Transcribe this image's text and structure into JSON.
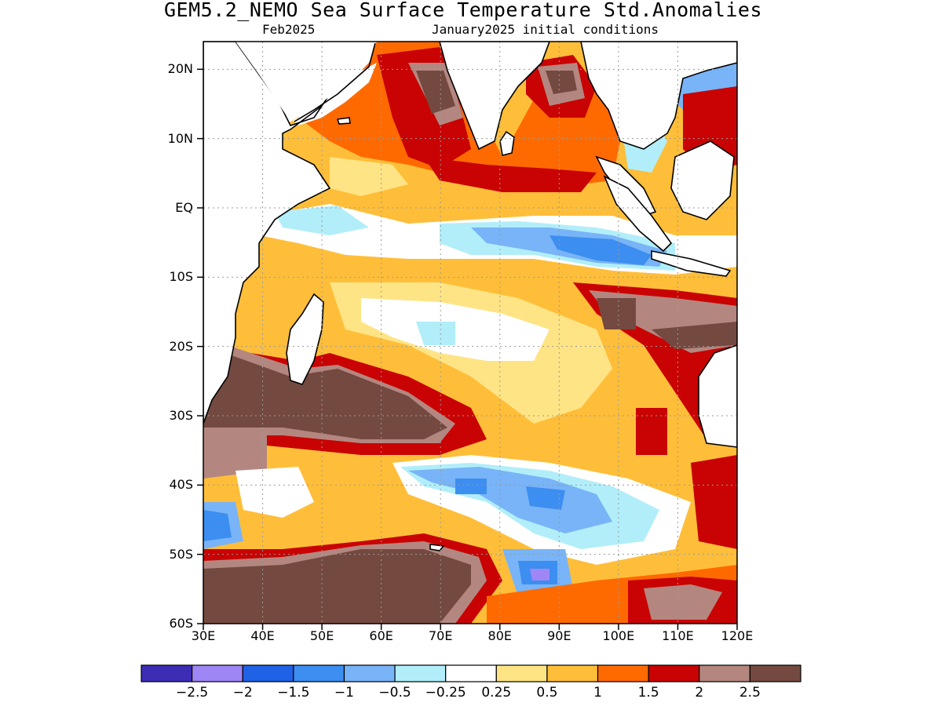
{
  "title": "GEM5.2_NEMO Sea Surface Temperature Std.Anomalies",
  "subtitle_left": "Feb2025",
  "subtitle_right": "January2025 initial conditions",
  "axes": {
    "lon_range": [
      30,
      120
    ],
    "lat_range": [
      -60,
      24
    ],
    "lat_ticks": [
      {
        "value": 20,
        "label": "20N"
      },
      {
        "value": 10,
        "label": "10N"
      },
      {
        "value": 0,
        "label": "EQ"
      },
      {
        "value": -10,
        "label": "10S"
      },
      {
        "value": -20,
        "label": "20S"
      },
      {
        "value": -30,
        "label": "30S"
      },
      {
        "value": -40,
        "label": "40S"
      },
      {
        "value": -50,
        "label": "50S"
      },
      {
        "value": -60,
        "label": "60S"
      }
    ],
    "lon_ticks": [
      {
        "value": 30,
        "label": "30E"
      },
      {
        "value": 40,
        "label": "40E"
      },
      {
        "value": 50,
        "label": "50E"
      },
      {
        "value": 60,
        "label": "60E"
      },
      {
        "value": 70,
        "label": "70E"
      },
      {
        "value": 80,
        "label": "80E"
      },
      {
        "value": 90,
        "label": "90E"
      },
      {
        "value": 100,
        "label": "100E"
      },
      {
        "value": 110,
        "label": "110E"
      },
      {
        "value": 120,
        "label": "120E"
      }
    ],
    "grid": true
  },
  "colorbar": {
    "colors": [
      "#3d2db5",
      "#9f86f5",
      "#1f62e6",
      "#3c8ef0",
      "#78b4f7",
      "#b1eef9",
      "#ffffff",
      "#ffe485",
      "#ffbe39",
      "#ff6a00",
      "#c90303",
      "#b38780",
      "#74493f"
    ],
    "labels": [
      "−2.5",
      "−2",
      "−1.5",
      "−1",
      "−0.5",
      "−0.25",
      "0.25",
      "0.5",
      "1",
      "1.5",
      "2",
      "2.5"
    ]
  },
  "colors": {
    "land": "#ffffff",
    "coastline": "#000000",
    "grid": "#9a9a9a"
  }
}
